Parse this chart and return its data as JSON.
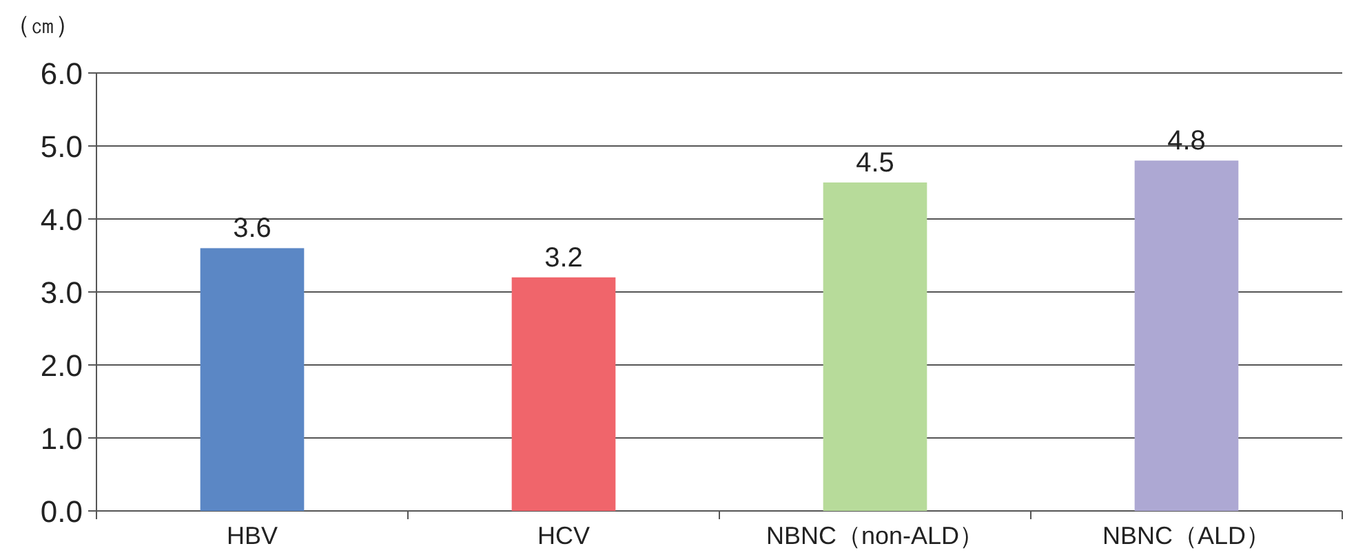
{
  "chart_data": {
    "type": "bar",
    "ylabel": "（㎝）",
    "categories": [
      "HBV",
      "HCV",
      "NBNC（non-ALD）",
      "NBNC（ALD）"
    ],
    "values": [
      3.6,
      3.2,
      4.5,
      4.8
    ],
    "colors": [
      "#5b87c5",
      "#f0656b",
      "#b7db9a",
      "#ada8d3"
    ],
    "ylim": [
      0,
      6
    ],
    "yticks": [
      {
        "value": 0,
        "label": "0.0"
      },
      {
        "value": 1,
        "label": "1.0"
      },
      {
        "value": 2,
        "label": "2.0"
      },
      {
        "value": 3,
        "label": "3.0"
      },
      {
        "value": 4,
        "label": "4.0"
      },
      {
        "value": 5,
        "label": "5.0"
      },
      {
        "value": 6,
        "label": "6.0"
      }
    ],
    "grid": "y",
    "data_labels": true
  }
}
